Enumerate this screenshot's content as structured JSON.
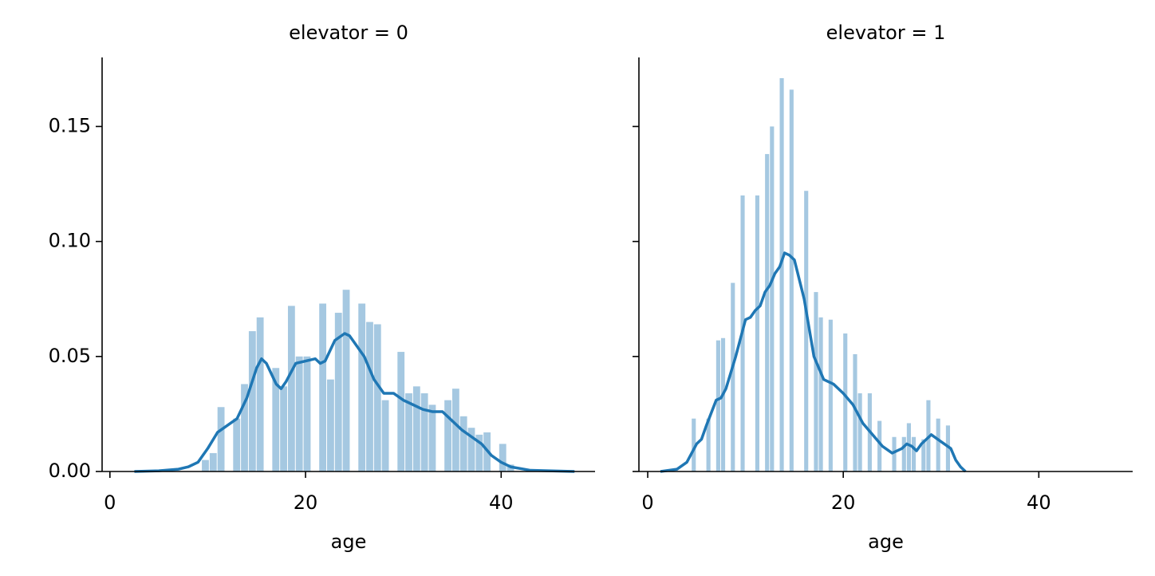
{
  "chart_data": [
    {
      "type": "histogram",
      "title": "elevator = 0",
      "xlabel": "age",
      "bins": [
        9.4,
        10.2,
        11,
        11.8,
        12.6,
        13.4,
        14.2,
        15,
        15.8,
        16.6,
        17.4,
        18.2,
        19,
        19.8,
        20.6,
        21.4,
        22.2,
        23,
        23.8,
        24.6,
        25.4,
        26.2,
        27,
        27.8,
        28.6,
        29.4,
        30.2,
        31,
        31.8,
        32.6,
        33.4,
        34.2,
        35,
        35.8,
        36.6,
        37.4,
        38.2,
        39,
        39.8,
        40.6,
        41.4
      ],
      "values": [
        0.005,
        0.008,
        0.028,
        0,
        0.023,
        0.038,
        0.061,
        0.067,
        0,
        0.045,
        0.037,
        0.072,
        0.05,
        0.05,
        0,
        0.073,
        0.04,
        0.069,
        0.079,
        0,
        0.073,
        0.065,
        0.064,
        0.031,
        0,
        0.052,
        0.034,
        0.037,
        0.034,
        0.029,
        0,
        0.031,
        0.036,
        0.024,
        0.019,
        0.016,
        0.017,
        0,
        0.012,
        0.003
      ],
      "color": "#a5c8e1",
      "kde_x": [
        2.5,
        5,
        7,
        8,
        9,
        10,
        11,
        12,
        13,
        14,
        15,
        15.5,
        16,
        17,
        17.5,
        18,
        19,
        20,
        21,
        21.5,
        22,
        23,
        24,
        24.5,
        25,
        26,
        27,
        28,
        29,
        30,
        31,
        32,
        33,
        34,
        35,
        36,
        37,
        38,
        39,
        40,
        41,
        43,
        47.5
      ],
      "kde_y": [
        0,
        0.0003,
        0.001,
        0.002,
        0.004,
        0.01,
        0.017,
        0.02,
        0.023,
        0.032,
        0.045,
        0.049,
        0.047,
        0.038,
        0.036,
        0.039,
        0.047,
        0.048,
        0.049,
        0.047,
        0.048,
        0.057,
        0.06,
        0.059,
        0.056,
        0.05,
        0.04,
        0.034,
        0.034,
        0.031,
        0.029,
        0.027,
        0.026,
        0.026,
        0.022,
        0.018,
        0.015,
        0.012,
        0.007,
        0.004,
        0.002,
        0.0005,
        0
      ],
      "kde_color": "#1f77b4",
      "xlim": [
        -0.8,
        49.6
      ],
      "xticks": [
        0,
        20,
        40
      ],
      "ylim": [
        0,
        0.18
      ],
      "yticks": [
        {
          "value": 0,
          "label": "0.00"
        },
        0.05,
        {
          "value": 0.1,
          "label": "0.10"
        },
        0.15
      ],
      "show_ytick_labels": true
    },
    {
      "type": "histogram",
      "title": "elevator = 1",
      "xlabel": "age",
      "bins": [
        4.5,
        5,
        5.5,
        6,
        6.5,
        7,
        7.5,
        8,
        8.5,
        9,
        9.5,
        10,
        10.5,
        11,
        11.5,
        12,
        12.5,
        13,
        13.5,
        14,
        14.5,
        15,
        15.5,
        16,
        16.5,
        17,
        17.5,
        18,
        18.5,
        19,
        19.5,
        20,
        20.5,
        21,
        21.5,
        22,
        22.5,
        23,
        23.5,
        24,
        24.5,
        25,
        25.5,
        26,
        26.5,
        27,
        27.5,
        28,
        28.5,
        29,
        29.5,
        30,
        30.5,
        31
      ],
      "values": [
        0.023,
        0,
        0,
        0.023,
        0,
        0.057,
        0.058,
        0,
        0.082,
        0,
        0.12,
        0,
        0,
        0.12,
        0,
        0.138,
        0.15,
        0,
        0.171,
        0,
        0.166,
        0,
        0,
        0.122,
        0,
        0.078,
        0.067,
        0,
        0.066,
        0,
        0,
        0.06,
        0,
        0.051,
        0.034,
        0,
        0.034,
        0,
        0.022,
        0,
        0,
        0.015,
        0,
        0.015,
        0.021,
        0.015,
        0,
        0.014,
        0.031,
        0,
        0.023,
        0,
        0.02
      ],
      "color": "#a5c8e1",
      "kde_x": [
        1.3,
        3,
        4,
        4.5,
        5,
        5.5,
        6,
        7,
        7.5,
        8,
        9,
        10,
        10.5,
        11,
        11.5,
        12,
        12.5,
        13,
        13.5,
        14,
        14.5,
        15,
        16,
        17,
        18,
        19,
        20,
        21,
        22,
        23,
        24,
        25,
        26,
        26.5,
        27,
        27.5,
        28,
        29,
        30,
        31,
        31.5,
        32,
        32.5
      ],
      "kde_y": [
        0,
        0.001,
        0.004,
        0.008,
        0.012,
        0.014,
        0.02,
        0.031,
        0.032,
        0.036,
        0.05,
        0.066,
        0.067,
        0.07,
        0.072,
        0.078,
        0.081,
        0.086,
        0.089,
        0.095,
        0.094,
        0.092,
        0.075,
        0.05,
        0.04,
        0.038,
        0.034,
        0.029,
        0.021,
        0.016,
        0.011,
        0.008,
        0.01,
        0.012,
        0.011,
        0.009,
        0.012,
        0.016,
        0.013,
        0.01,
        0.005,
        0.002,
        0
      ],
      "kde_color": "#1f77b4",
      "xlim": [
        -0.9,
        49.6
      ],
      "xticks": [
        0,
        20,
        40
      ],
      "ylim": [
        0,
        0.18
      ],
      "yticks": [
        0,
        0.05,
        0.1,
        0.15
      ],
      "show_ytick_labels": false
    }
  ]
}
